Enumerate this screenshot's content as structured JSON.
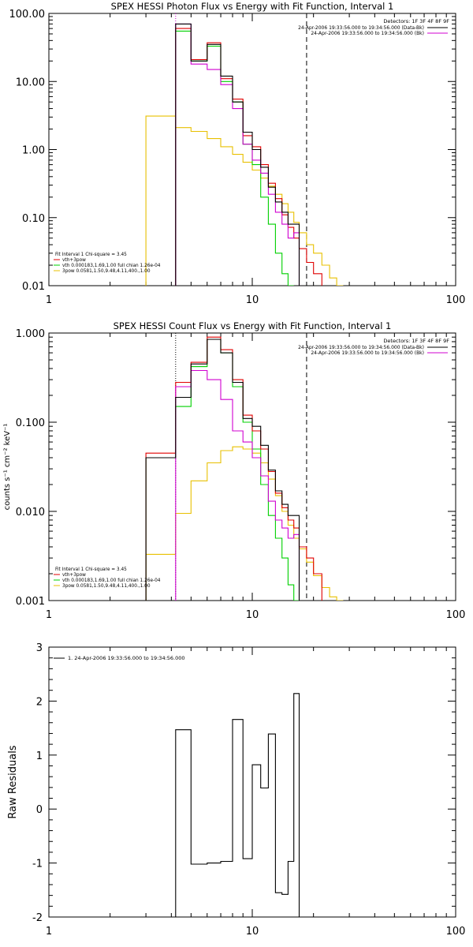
{
  "chart_data": [
    {
      "type": "line",
      "title": "SPEX HESSI Photon Flux vs Energy with Fit Function, Interval 1",
      "ylabel": "",
      "xlim": [
        1,
        100
      ],
      "ylim": [
        0.01,
        100
      ],
      "xscale": "log",
      "yscale": "log",
      "xticks": [
        "1",
        "10",
        "100"
      ],
      "yticks": [
        "0.01",
        "0.10",
        "1.00",
        "10.00",
        "100.00"
      ],
      "detectors": "Detectors: 1F 3F 4F 8F 9F",
      "legend_right": [
        {
          "text": "24-Apr-2006 19:33:56.000 to 19:34:56.000 (Data-Bk)",
          "color": "#000000"
        },
        {
          "text": "24-Apr-2006 19:33:56.000 to 19:34:56.000 (Bk)",
          "color": "#d000d0"
        }
      ],
      "legend_left": [
        {
          "text": "Fit Interval  1     Chi-square = 3.45",
          "color": ""
        },
        {
          "text": "vth+3pow",
          "color": "#e00000"
        },
        {
          "text": "vth 0.000183,1.69,1.00   full chian 1.26e-04",
          "color": "#00d000"
        },
        {
          "text": "3pow 0.0581,1.50,9.48,4.11,400.,1.00",
          "color": "#e8c000"
        }
      ],
      "markers": {
        "solid_x": 3.0,
        "dotted_x": 4.2,
        "dashed_x": 18.5
      },
      "edges": [
        3,
        4.2,
        5,
        6,
        7,
        8,
        9,
        10,
        11,
        12,
        13,
        14,
        15,
        16,
        17,
        18.5,
        20,
        22,
        24,
        26,
        28
      ],
      "series": [
        {
          "name": "Data-Bk",
          "color": "#000000",
          "values": [
            null,
            70,
            20,
            35,
            12,
            5,
            1.8,
            1.0,
            0.55,
            0.28,
            0.17,
            0.12,
            0.08,
            0.08,
            null,
            null,
            null,
            null,
            null,
            null
          ]
        },
        {
          "name": "Bk",
          "color": "#d000d0",
          "values": [
            null,
            70,
            18,
            15,
            9,
            4,
            1.2,
            0.7,
            0.45,
            0.22,
            0.12,
            0.08,
            0.05,
            0.06,
            null,
            null,
            null,
            null,
            null,
            null
          ]
        },
        {
          "name": "vth+3pow",
          "color": "#e00000",
          "values": [
            null,
            60,
            21,
            37,
            11,
            5.5,
            1.6,
            1.1,
            0.6,
            0.32,
            0.19,
            0.11,
            0.072,
            0.05,
            0.035,
            0.022,
            0.015,
            null,
            null,
            null
          ]
        },
        {
          "name": "vth",
          "color": "#00d000",
          "values": [
            null,
            55,
            20,
            33,
            10,
            5,
            1.2,
            0.6,
            0.2,
            0.08,
            0.03,
            0.015,
            0.01,
            null,
            null,
            null,
            null,
            null,
            null,
            null
          ]
        },
        {
          "name": "3pow",
          "color": "#e8c000",
          "values": [
            3.1,
            2.1,
            1.85,
            1.45,
            1.1,
            0.85,
            0.65,
            0.5,
            0.38,
            0.29,
            0.22,
            0.16,
            0.12,
            0.085,
            0.06,
            0.04,
            0.03,
            0.02,
            0.013,
            0.008
          ]
        }
      ]
    },
    {
      "type": "line",
      "title": "SPEX HESSI Count Flux vs Energy with Fit Function, Interval 1",
      "ylabel": "counts s⁻¹ cm⁻² keV⁻¹",
      "xlim": [
        1,
        100
      ],
      "ylim": [
        0.001,
        1
      ],
      "xscale": "log",
      "yscale": "log",
      "xticks": [
        "1",
        "10",
        "100"
      ],
      "yticks": [
        "0.001",
        "0.010",
        "0.100",
        "1.000"
      ],
      "detectors": "Detectors: 1F 3F 4F 8F 9F",
      "legend_right": [
        {
          "text": "24-Apr-2006 19:33:56.000 to 19:34:56.000 (Data-Bk)",
          "color": "#000000"
        },
        {
          "text": "24-Apr-2006 19:33:56.000 to 19:34:56.000 (Bk)",
          "color": "#d000d0"
        }
      ],
      "legend_left": [
        {
          "text": "Fit Interval  1     Chi-square = 3.45",
          "color": ""
        },
        {
          "text": "vth+3pow",
          "color": "#e00000"
        },
        {
          "text": "vth 0.000183,1.69,1.00   full chian 1.26e-04",
          "color": "#00d000"
        },
        {
          "text": "3pow 0.0581,1.50,9.48,4.11,400.,1.00",
          "color": "#e8c000"
        }
      ],
      "markers": {
        "solid_x": 3.0,
        "dotted_x": 4.2,
        "dashed_x": 18.5
      },
      "edges": [
        3,
        4.2,
        5,
        6,
        7,
        8,
        9,
        10,
        11,
        12,
        13,
        14,
        15,
        16,
        17,
        18.5,
        20,
        22,
        24,
        26,
        28
      ],
      "series": [
        {
          "name": "Data-Bk",
          "color": "#000000",
          "values": [
            0.04,
            0.19,
            0.45,
            0.85,
            0.6,
            0.28,
            0.11,
            0.09,
            0.055,
            0.029,
            0.017,
            0.012,
            0.009,
            0.009,
            null,
            null,
            null,
            null,
            null,
            null
          ]
        },
        {
          "name": "Bk",
          "color": "#d000d0",
          "values": [
            null,
            0.25,
            0.38,
            0.3,
            0.18,
            0.08,
            0.06,
            0.04,
            0.025,
            0.013,
            0.008,
            0.0065,
            0.005,
            0.0055,
            null,
            null,
            null,
            null,
            null,
            null
          ]
        },
        {
          "name": "vth+3pow",
          "color": "#e00000",
          "values": [
            0.045,
            0.28,
            0.47,
            0.9,
            0.65,
            0.3,
            0.12,
            0.08,
            0.05,
            0.028,
            0.016,
            0.011,
            0.008,
            0.0065,
            0.004,
            0.003,
            0.002,
            null,
            null,
            null
          ]
        },
        {
          "name": "vth",
          "color": "#00d000",
          "values": [
            0.04,
            0.15,
            0.42,
            0.85,
            0.6,
            0.25,
            0.1,
            0.05,
            0.02,
            0.009,
            0.005,
            0.003,
            0.0015,
            0.001,
            null,
            null,
            null,
            null,
            null,
            null
          ]
        },
        {
          "name": "3pow",
          "color": "#e8c000",
          "values": [
            0.0033,
            0.0095,
            0.022,
            0.035,
            0.048,
            0.053,
            0.05,
            0.045,
            0.035,
            0.023,
            0.015,
            0.01,
            0.007,
            0.005,
            0.0038,
            0.0027,
            0.0019,
            0.0014,
            0.0011,
            0.0008
          ]
        }
      ]
    },
    {
      "type": "line",
      "title": "",
      "ylabel": "Raw Residuals",
      "xlim": [
        1,
        100
      ],
      "ylim": [
        -2,
        3
      ],
      "xscale": "log",
      "yscale": "linear",
      "xticks": [
        "1",
        "10",
        "100"
      ],
      "yticks": [
        "-2",
        "-1",
        "0",
        "1",
        "2",
        "3"
      ],
      "legend_left": [
        {
          "text": "1. 24-Apr-2006 19:33:56.000 to 19:34:56.000",
          "color": "#000000"
        }
      ],
      "edges": [
        4.2,
        5,
        6,
        7,
        8,
        9,
        10,
        11,
        12,
        13,
        14,
        15,
        16,
        17,
        18.5
      ],
      "series": [
        {
          "name": "",
          "color": "#000000",
          "values": [
            1.47,
            -1.02,
            -1.0,
            -0.97,
            1.66,
            -0.92,
            0.82,
            0.39,
            1.39,
            -1.55,
            -1.58,
            -0.97,
            2.14,
            null
          ]
        }
      ]
    }
  ]
}
